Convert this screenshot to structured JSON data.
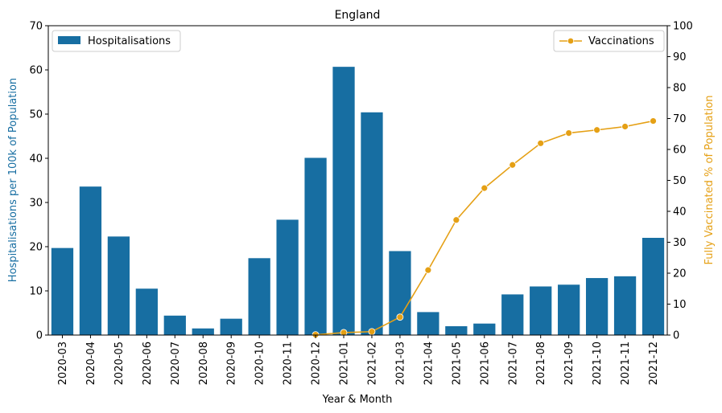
{
  "chart_data": {
    "type": "bar",
    "title": "England",
    "xlabel": "Year & Month",
    "ylabel_left": "Hospitalisations per 100k of Population",
    "ylabel_right": "Fully Vaccinated % of Population",
    "ylim_left": [
      0,
      70
    ],
    "ylim_right": [
      0,
      100
    ],
    "yticks_left": [
      0,
      10,
      20,
      30,
      40,
      50,
      60,
      70
    ],
    "yticks_right": [
      0,
      10,
      20,
      30,
      40,
      50,
      60,
      70,
      80,
      90,
      100
    ],
    "categories": [
      "2020-03",
      "2020-04",
      "2020-05",
      "2020-06",
      "2020-07",
      "2020-08",
      "2020-09",
      "2020-10",
      "2020-11",
      "2020-12",
      "2021-01",
      "2021-02",
      "2021-03",
      "2021-04",
      "2021-05",
      "2021-06",
      "2021-07",
      "2021-08",
      "2021-09",
      "2021-10",
      "2021-11",
      "2021-12"
    ],
    "grid": false,
    "series": [
      {
        "name": "Hospitalisations",
        "type": "bar",
        "axis": "left",
        "color": "#176ea2",
        "values": [
          19.7,
          33.6,
          22.3,
          10.5,
          4.4,
          1.5,
          3.7,
          17.4,
          26.1,
          40.1,
          60.7,
          50.4,
          19.0,
          5.2,
          2.0,
          2.6,
          9.2,
          11.0,
          11.4,
          12.9,
          13.3,
          22.0
        ]
      },
      {
        "name": "Vaccinations",
        "type": "line",
        "axis": "right",
        "color": "#e5a015",
        "x": [
          "2020-12",
          "2021-01",
          "2021-02",
          "2021-03",
          "2021-04",
          "2021-05",
          "2021-06",
          "2021-07",
          "2021-08",
          "2021-09",
          "2021-10",
          "2021-11",
          "2021-12"
        ],
        "values": [
          0.1,
          0.8,
          1.1,
          5.8,
          21.0,
          37.2,
          47.5,
          55.0,
          62.0,
          65.3,
          66.3,
          67.4,
          69.2
        ]
      }
    ],
    "legend_left_position": "top-left",
    "legend_right_position": "top-right"
  }
}
